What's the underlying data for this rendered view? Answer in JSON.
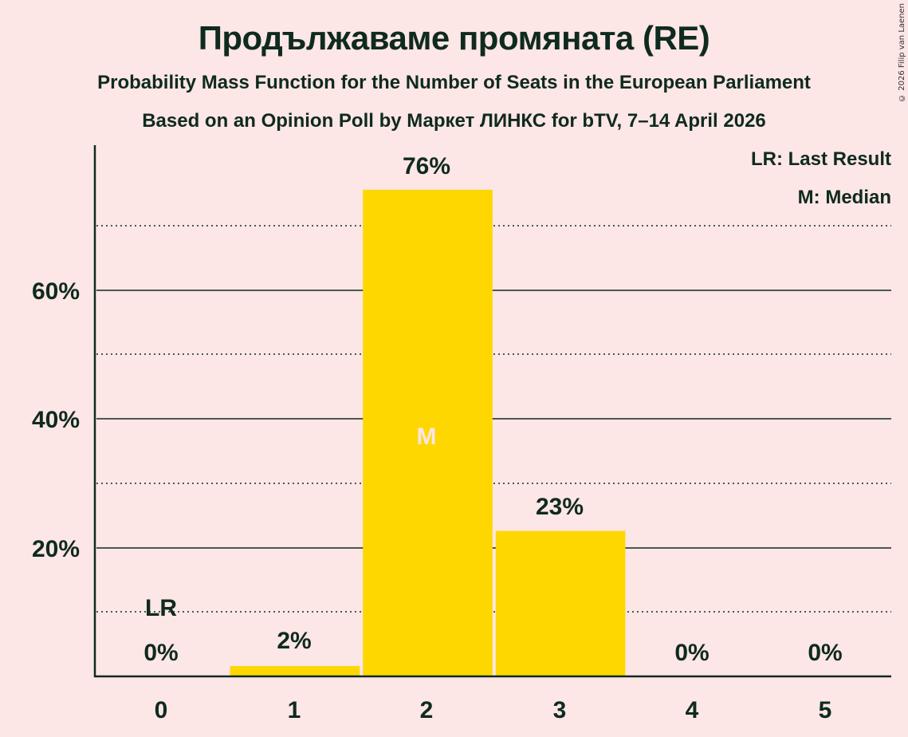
{
  "header": {
    "title": "Продължаваме промяната (RE)",
    "subtitle": "Probability Mass Function for the Number of Seats in the European Parliament",
    "source": "Based on an Opinion Poll by Маркет ЛИНКС for bTV, 7–14 April 2026",
    "copyright": "© 2026 Filip van Laenen"
  },
  "legend": {
    "last_result": "LR: Last Result",
    "median": "M: Median"
  },
  "colors": {
    "background": "#fde6e6",
    "bar": "#ffd700",
    "text": "#0f2a1e"
  },
  "chart_data": {
    "type": "bar",
    "title": "Продължаваме промяната (RE)",
    "subtitle": "Probability Mass Function for the Number of Seats in the European Parliament",
    "xlabel": "",
    "ylabel": "",
    "categories": [
      "0",
      "1",
      "2",
      "3",
      "4",
      "5"
    ],
    "values": [
      0,
      1.6,
      75.6,
      22.6,
      0,
      0
    ],
    "value_labels": [
      "0%",
      "2%",
      "76%",
      "23%",
      "0%",
      "0%"
    ],
    "ylim": [
      0,
      82
    ],
    "yticks_major": [
      "20%",
      "40%",
      "60%"
    ],
    "gridlines_minor": [
      10,
      30,
      50,
      70
    ],
    "annotations": {
      "last_result_seat": "0",
      "last_result_label": "LR",
      "median_seat": "2",
      "median_label": "M"
    },
    "legend_position": "top-right",
    "grid": true
  }
}
